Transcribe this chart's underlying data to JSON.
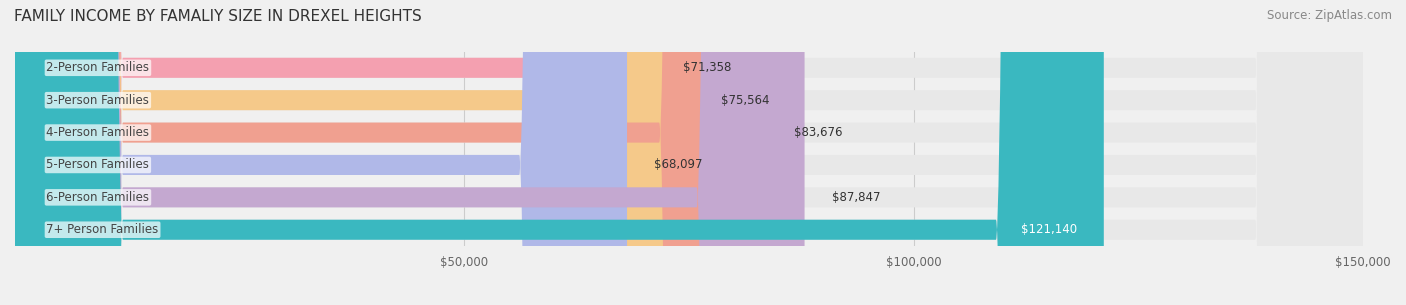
{
  "title": "FAMILY INCOME BY FAMALIY SIZE IN DREXEL HEIGHTS",
  "source": "Source: ZipAtlas.com",
  "categories": [
    "2-Person Families",
    "3-Person Families",
    "4-Person Families",
    "5-Person Families",
    "6-Person Families",
    "7+ Person Families"
  ],
  "values": [
    71358,
    75564,
    83676,
    68097,
    87847,
    121140
  ],
  "bar_colors": [
    "#f4a0b0",
    "#f5c98a",
    "#f0a090",
    "#b0b8e8",
    "#c4a8d0",
    "#3ab8c0"
  ],
  "label_colors": [
    "#333333",
    "#333333",
    "#333333",
    "#333333",
    "#333333",
    "#ffffff"
  ],
  "value_labels": [
    "$71,358",
    "$75,564",
    "$83,676",
    "$68,097",
    "$87,847",
    "$121,140"
  ],
  "xlim": [
    0,
    150000
  ],
  "xticks": [
    0,
    50000,
    100000,
    150000
  ],
  "xtick_labels": [
    "$50,000",
    "$100,000",
    "$150,000"
  ],
  "background_color": "#f0f0f0",
  "bar_bg_color": "#e8e8e8",
  "title_fontsize": 11,
  "source_fontsize": 8.5,
  "label_fontsize": 8.5,
  "value_fontsize": 8.5,
  "tick_fontsize": 8.5
}
